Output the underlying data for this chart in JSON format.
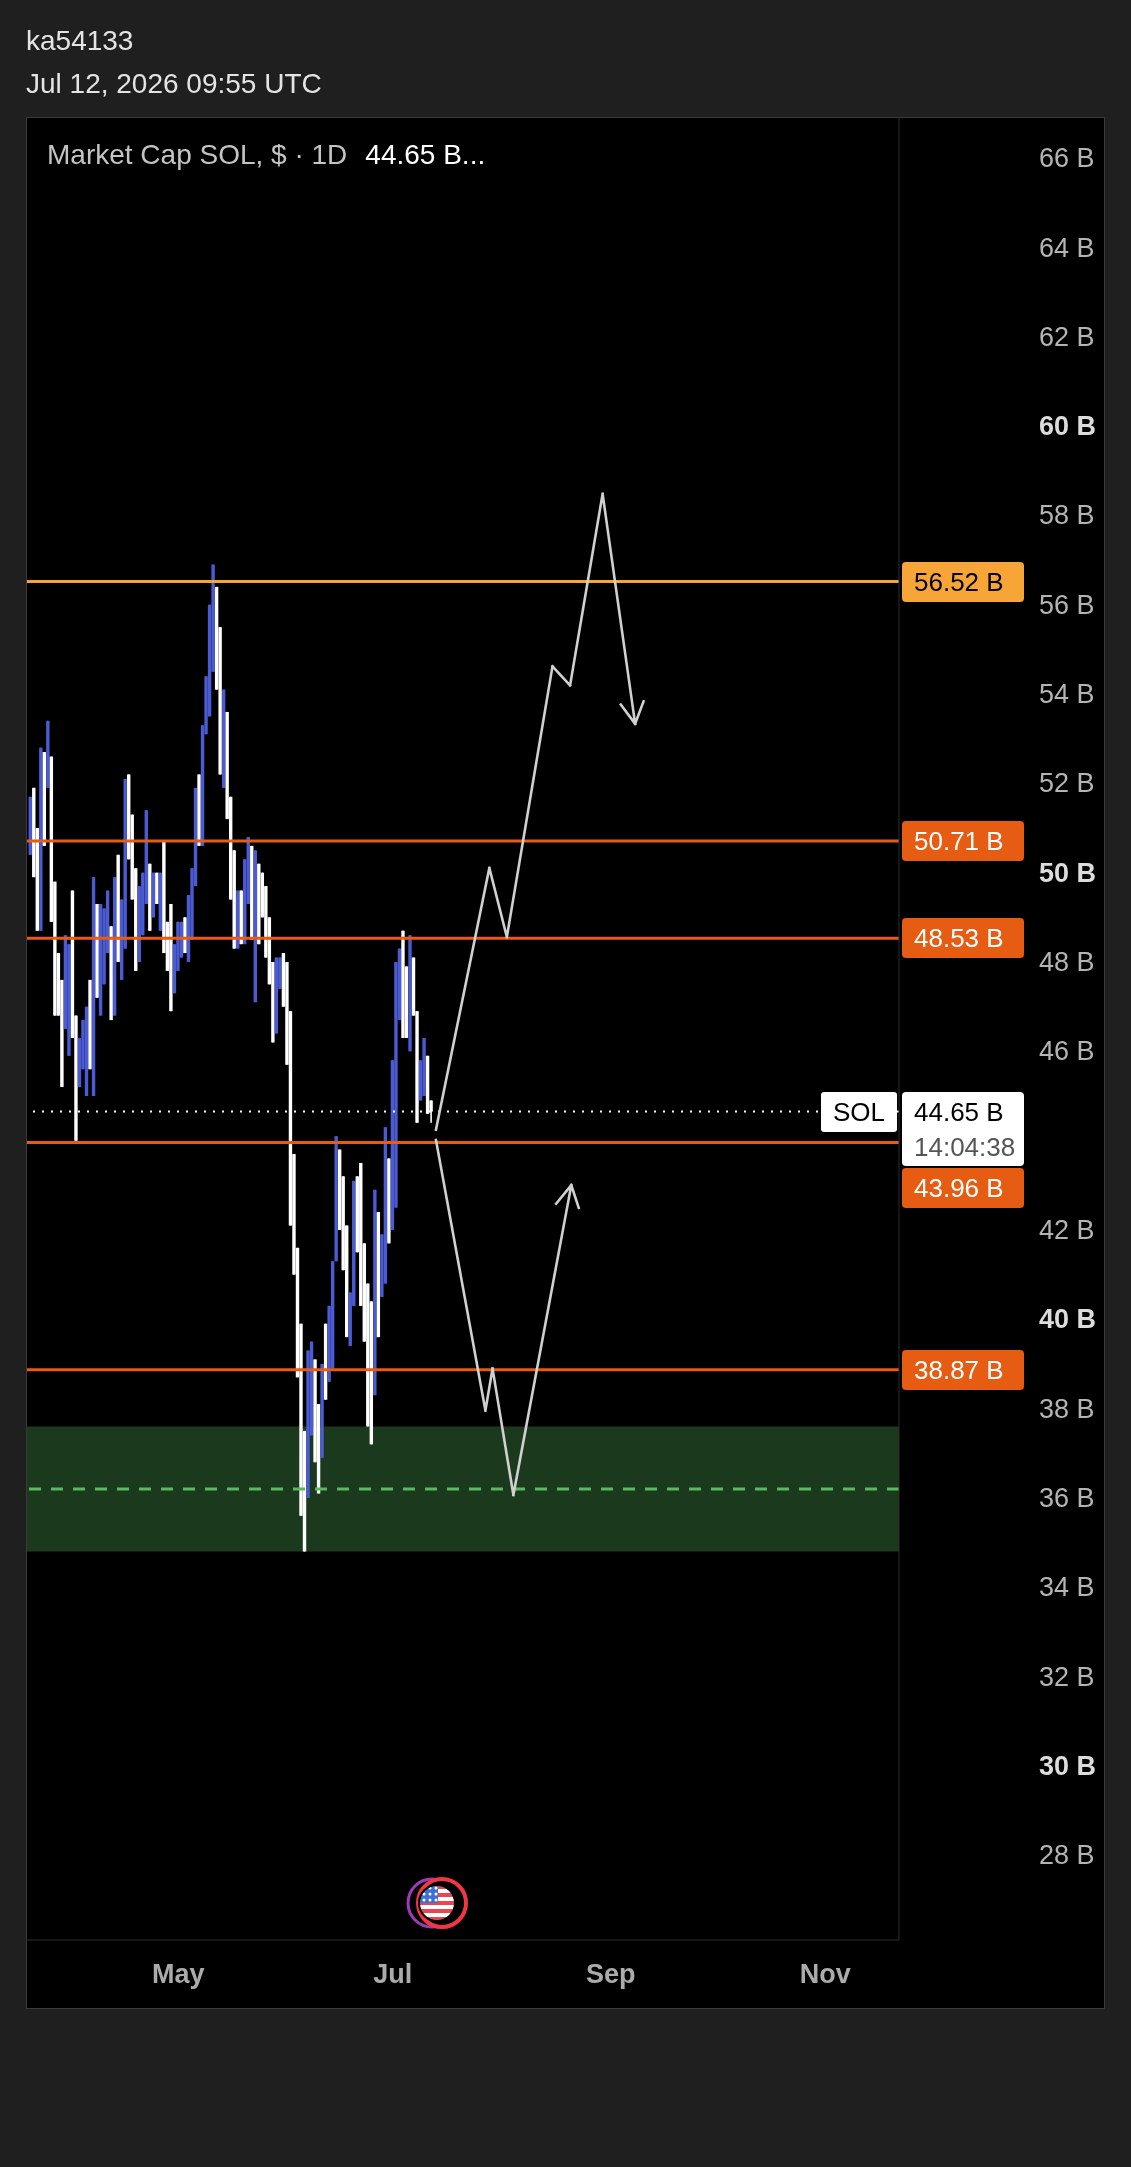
{
  "chart_data": {
    "type": "candlestick",
    "title": "Market Cap SOL, $ · 1D",
    "subtitle": "44.65 B...",
    "annotations": [
      "ka54133",
      "Jul 12, 2026 09:55 UTC",
      {
        "text": "SOL",
        "y": 44.65
      },
      "14:04:38"
    ],
    "x": [
      "2026-03-20",
      "2026-03-21",
      "2026-03-22",
      "2026-03-23",
      "2026-03-24",
      "2026-03-25",
      "2026-03-26",
      "2026-03-27",
      "2026-03-28",
      "2026-03-29",
      "2026-03-30",
      "2026-03-31",
      "2026-04-01",
      "2026-04-02",
      "2026-04-03",
      "2026-04-04",
      "2026-04-05",
      "2026-04-06",
      "2026-04-07",
      "2026-04-08",
      "2026-04-09",
      "2026-04-10",
      "2026-04-11",
      "2026-04-12",
      "2026-04-13",
      "2026-04-14",
      "2026-04-15",
      "2026-04-16",
      "2026-04-17",
      "2026-04-18",
      "2026-04-19",
      "2026-04-20",
      "2026-04-21",
      "2026-04-22",
      "2026-04-23",
      "2026-04-24",
      "2026-04-25",
      "2026-04-26",
      "2026-04-27",
      "2026-04-28",
      "2026-04-29",
      "2026-04-30",
      "2026-05-01",
      "2026-05-02",
      "2026-05-03",
      "2026-05-04",
      "2026-05-05",
      "2026-05-06",
      "2026-05-07",
      "2026-05-08",
      "2026-05-09",
      "2026-05-10",
      "2026-05-11",
      "2026-05-12",
      "2026-05-13",
      "2026-05-14",
      "2026-05-15",
      "2026-05-16",
      "2026-05-17",
      "2026-05-18",
      "2026-05-19",
      "2026-05-20",
      "2026-05-21",
      "2026-05-22",
      "2026-05-23",
      "2026-05-24",
      "2026-05-25",
      "2026-05-26",
      "2026-05-27",
      "2026-05-28",
      "2026-05-29",
      "2026-05-30",
      "2026-05-31",
      "2026-06-01",
      "2026-06-02",
      "2026-06-03",
      "2026-06-04",
      "2026-06-05",
      "2026-06-06",
      "2026-06-07",
      "2026-06-08",
      "2026-06-09",
      "2026-06-10",
      "2026-06-11",
      "2026-06-12",
      "2026-06-13",
      "2026-06-14",
      "2026-06-15",
      "2026-06-16",
      "2026-06-17",
      "2026-06-18",
      "2026-06-19",
      "2026-06-20",
      "2026-06-21",
      "2026-06-22",
      "2026-06-23",
      "2026-06-24",
      "2026-06-25",
      "2026-06-26",
      "2026-06-27",
      "2026-06-28",
      "2026-06-29",
      "2026-06-30",
      "2026-07-01",
      "2026-07-02",
      "2026-07-03",
      "2026-07-04",
      "2026-07-05",
      "2026-07-06",
      "2026-07-07",
      "2026-07-08",
      "2026-07-09",
      "2026-07-10",
      "2026-07-11",
      "2026-07-12"
    ],
    "ohlc": [
      [
        50.4,
        51.7,
        50.4,
        51.7
      ],
      [
        51.9,
        51.9,
        49.9,
        49.9
      ],
      [
        51.0,
        51.0,
        48.7,
        48.7
      ],
      [
        48.7,
        52.8,
        48.7,
        52.8
      ],
      [
        52.7,
        52.7,
        50.6,
        50.6
      ],
      [
        51.9,
        53.4,
        51.9,
        53.4
      ],
      [
        52.6,
        52.6,
        48.9,
        48.9
      ],
      [
        49.8,
        49.8,
        46.8,
        46.8
      ],
      [
        48.2,
        48.2,
        46.8,
        46.8
      ],
      [
        47.6,
        47.6,
        45.2,
        45.2
      ],
      [
        46.5,
        48.6,
        46.5,
        48.6
      ],
      [
        45.9,
        48.4,
        45.9,
        48.4
      ],
      [
        49.6,
        49.6,
        46.3,
        46.3
      ],
      [
        46.8,
        46.8,
        44.0,
        44.0
      ],
      [
        45.2,
        46.3,
        45.2,
        46.3
      ],
      [
        45.6,
        46.7,
        45.6,
        46.7
      ],
      [
        45.0,
        47.0,
        45.0,
        47.0
      ],
      [
        47.6,
        47.6,
        45.6,
        45.6
      ],
      [
        45.0,
        49.9,
        45.0,
        49.9
      ],
      [
        49.3,
        49.3,
        47.2,
        47.2
      ],
      [
        46.8,
        49.3,
        46.8,
        49.3
      ],
      [
        47.5,
        49.2,
        47.5,
        49.2
      ],
      [
        48.2,
        49.6,
        48.2,
        49.6
      ],
      [
        48.8,
        48.8,
        46.7,
        46.7
      ],
      [
        46.8,
        49.9,
        46.8,
        49.9
      ],
      [
        50.4,
        50.4,
        48.0,
        48.0
      ],
      [
        47.6,
        49.4,
        47.6,
        49.4
      ],
      [
        48.3,
        52.1,
        48.3,
        52.1
      ],
      [
        52.2,
        52.2,
        50.3,
        50.3
      ],
      [
        51.3,
        51.3,
        49.4,
        49.4
      ],
      [
        50.1,
        50.1,
        47.8,
        47.8
      ],
      [
        48.0,
        49.7,
        48.0,
        49.7
      ],
      [
        48.6,
        50.0,
        48.6,
        50.0
      ],
      [
        49.3,
        51.4,
        49.3,
        51.4
      ],
      [
        50.2,
        50.2,
        48.7,
        48.7
      ],
      [
        49.0,
        50.0,
        49.0,
        50.0
      ],
      [
        50.0,
        50.0,
        49.3,
        49.3
      ],
      [
        48.7,
        50.0,
        48.7,
        50.0
      ],
      [
        50.7,
        50.7,
        48.2,
        48.2
      ],
      [
        48.9,
        48.9,
        47.8,
        47.8
      ],
      [
        49.3,
        49.3,
        46.9,
        46.9
      ],
      [
        47.3,
        48.4,
        47.3,
        48.4
      ],
      [
        47.8,
        48.9,
        47.8,
        48.9
      ],
      [
        48.1,
        48.9,
        48.1,
        48.9
      ],
      [
        49.0,
        49.0,
        48.2,
        48.2
      ],
      [
        48.0,
        49.5,
        48.0,
        49.5
      ],
      [
        48.5,
        50.1,
        48.5,
        50.1
      ],
      [
        49.7,
        51.9,
        49.7,
        51.9
      ],
      [
        52.2,
        52.2,
        50.6,
        50.6
      ],
      [
        50.6,
        53.3,
        50.6,
        53.3
      ],
      [
        53.1,
        54.4,
        53.1,
        54.4
      ],
      [
        53.5,
        56.0,
        53.5,
        56.0
      ],
      [
        54.5,
        56.9,
        54.5,
        56.9
      ],
      [
        56.4,
        56.4,
        54.1,
        54.1
      ],
      [
        55.5,
        55.5,
        52.2,
        52.2
      ],
      [
        51.9,
        54.1,
        51.9,
        54.1
      ],
      [
        53.6,
        53.6,
        51.2,
        51.2
      ],
      [
        51.7,
        51.7,
        49.4,
        49.4
      ],
      [
        50.5,
        50.5,
        48.3,
        48.3
      ],
      [
        48.3,
        49.6,
        48.3,
        49.6
      ],
      [
        49.6,
        49.6,
        48.4,
        48.4
      ],
      [
        48.4,
        50.3,
        48.4,
        50.3
      ],
      [
        49.3,
        50.8,
        49.3,
        50.8
      ],
      [
        50.6,
        50.6,
        48.5,
        48.5
      ],
      [
        47.1,
        50.5,
        47.1,
        50.5
      ],
      [
        50.2,
        50.2,
        48.4,
        48.4
      ],
      [
        50.0,
        50.0,
        49.0,
        49.0
      ],
      [
        49.7,
        49.7,
        48.1,
        48.1
      ],
      [
        49.0,
        49.0,
        47.5,
        47.5
      ],
      [
        48.0,
        48.0,
        46.2,
        46.2
      ],
      [
        46.4,
        48.1,
        46.4,
        48.1
      ],
      [
        47.4,
        48.1,
        47.4,
        48.1
      ],
      [
        48.2,
        48.2,
        47.0,
        47.0
      ],
      [
        48.0,
        48.0,
        45.7,
        45.7
      ],
      [
        46.9,
        46.9,
        42.1,
        42.1
      ],
      [
        43.7,
        43.7,
        41.0,
        41.0
      ],
      [
        41.6,
        41.6,
        38.7,
        38.7
      ],
      [
        39.9,
        39.9,
        35.6,
        35.6
      ],
      [
        37.5,
        37.5,
        34.8,
        34.8
      ],
      [
        36.0,
        39.3,
        36.0,
        39.3
      ],
      [
        37.4,
        39.5,
        37.4,
        39.5
      ],
      [
        39.1,
        39.1,
        36.8,
        36.8
      ],
      [
        38.1,
        38.1,
        36.1,
        36.1
      ],
      [
        36.9,
        39.0,
        36.9,
        39.0
      ],
      [
        39.9,
        39.9,
        38.2,
        38.2
      ],
      [
        38.6,
        40.3,
        38.6,
        40.3
      ],
      [
        38.9,
        41.3,
        38.9,
        41.3
      ],
      [
        41.3,
        44.1,
        41.3,
        44.1
      ],
      [
        43.8,
        43.8,
        42.0,
        42.0
      ],
      [
        43.2,
        43.2,
        41.1,
        41.1
      ],
      [
        42.1,
        42.1,
        39.6,
        39.6
      ],
      [
        39.4,
        40.6,
        39.4,
        40.6
      ],
      [
        40.3,
        43.1,
        40.3,
        43.1
      ],
      [
        43.2,
        43.2,
        41.5,
        41.5
      ],
      [
        43.5,
        43.5,
        40.3,
        40.3
      ],
      [
        41.7,
        41.7,
        39.5,
        39.5
      ],
      [
        40.8,
        40.8,
        37.6,
        37.6
      ],
      [
        40.4,
        40.4,
        37.2,
        37.2
      ],
      [
        38.3,
        42.9,
        38.3,
        42.9
      ],
      [
        42.4,
        42.4,
        39.6,
        39.6
      ],
      [
        40.5,
        41.9,
        40.5,
        41.9
      ],
      [
        40.8,
        44.3,
        40.8,
        44.3
      ],
      [
        43.6,
        43.6,
        41.7,
        41.7
      ],
      [
        42.0,
        45.8,
        42.0,
        45.8
      ],
      [
        42.5,
        48.0,
        42.5,
        48.0
      ],
      [
        46.7,
        48.3,
        46.7,
        48.3
      ],
      [
        48.7,
        48.7,
        46.3,
        46.3
      ],
      [
        47.9,
        47.9,
        46.3,
        46.3
      ],
      [
        46.0,
        48.6,
        46.0,
        48.6
      ],
      [
        48.1,
        48.1,
        46.8,
        46.8
      ],
      [
        46.9,
        46.9,
        44.4,
        44.4
      ],
      [
        44.9,
        45.8,
        44.9,
        45.8
      ],
      [
        45.0,
        46.3,
        45.0,
        46.3
      ],
      [
        45.9,
        45.9,
        44.6,
        44.6
      ],
      [
        44.9,
        44.9,
        44.4,
        44.65
      ]
    ],
    "colors": [
      "#4b5bd4",
      "#ffffff",
      "#ffffff",
      "#4b5bd4",
      "#ffffff",
      "#4b5bd4",
      "#ffffff",
      "#ffffff",
      "#ffffff",
      "#ffffff",
      "#4b5bd4",
      "#4b5bd4",
      "#ffffff",
      "#ffffff",
      "#4b5bd4",
      "#4b5bd4",
      "#4b5bd4",
      "#ffffff",
      "#4b5bd4",
      "#ffffff",
      "#4b5bd4",
      "#4b5bd4",
      "#4b5bd4",
      "#ffffff",
      "#4b5bd4",
      "#ffffff",
      "#4b5bd4",
      "#4b5bd4",
      "#ffffff",
      "#ffffff",
      "#ffffff",
      "#4b5bd4",
      "#4b5bd4",
      "#4b5bd4",
      "#ffffff",
      "#4b5bd4",
      "#ffffff",
      "#4b5bd4",
      "#ffffff",
      "#ffffff",
      "#ffffff",
      "#4b5bd4",
      "#4b5bd4",
      "#4b5bd4",
      "#ffffff",
      "#4b5bd4",
      "#4b5bd4",
      "#4b5bd4",
      "#ffffff",
      "#4b5bd4",
      "#4b5bd4",
      "#4b5bd4",
      "#4b5bd4",
      "#ffffff",
      "#ffffff",
      "#4b5bd4",
      "#ffffff",
      "#ffffff",
      "#ffffff",
      "#4b5bd4",
      "#ffffff",
      "#4b5bd4",
      "#4b5bd4",
      "#ffffff",
      "#4b5bd4",
      "#ffffff",
      "#ffffff",
      "#ffffff",
      "#ffffff",
      "#ffffff",
      "#4b5bd4",
      "#4b5bd4",
      "#ffffff",
      "#ffffff",
      "#ffffff",
      "#ffffff",
      "#ffffff",
      "#ffffff",
      "#ffffff",
      "#4b5bd4",
      "#4b5bd4",
      "#ffffff",
      "#ffffff",
      "#4b5bd4",
      "#ffffff",
      "#4b5bd4",
      "#4b5bd4",
      "#4b5bd4",
      "#ffffff",
      "#ffffff",
      "#ffffff",
      "#4b5bd4",
      "#4b5bd4",
      "#ffffff",
      "#ffffff",
      "#ffffff",
      "#ffffff",
      "#ffffff",
      "#4b5bd4",
      "#ffffff",
      "#4b5bd4",
      "#4b5bd4",
      "#ffffff",
      "#4b5bd4",
      "#4b5bd4",
      "#4b5bd4",
      "#ffffff",
      "#ffffff",
      "#4b5bd4",
      "#ffffff",
      "#ffffff",
      "#4b5bd4",
      "#4b5bd4",
      "#ffffff",
      "#ffffff"
    ],
    "xlim": [
      "2026-03-19",
      "2026-11-22"
    ],
    "xticks": [
      {
        "value": "2026-05-01",
        "label": "May"
      },
      {
        "value": "2026-07-01",
        "label": "Jul"
      },
      {
        "value": "2026-09-01",
        "label": "Sep"
      },
      {
        "value": "2026-11-01",
        "label": "Nov"
      }
    ],
    "ylim": [
      26.1,
      66.9
    ],
    "yticks": [
      {
        "value": 28,
        "label": "28 B"
      },
      {
        "value": 30,
        "label": "30 B"
      },
      {
        "value": 32,
        "label": "32 B"
      },
      {
        "value": 34,
        "label": "34 B"
      },
      {
        "value": 36,
        "label": "36 B"
      },
      {
        "value": 38,
        "label": "38 B"
      },
      {
        "value": 40,
        "label": "40 B"
      },
      {
        "value": 42,
        "label": "42 B"
      },
      {
        "value": 46,
        "label": "46 B"
      },
      {
        "value": 48,
        "label": "48 B"
      },
      {
        "value": 50,
        "label": "50 B"
      },
      {
        "value": 52,
        "label": "52 B"
      },
      {
        "value": 54,
        "label": "54 B"
      },
      {
        "value": 56,
        "label": "56 B"
      },
      {
        "value": 58,
        "label": "58 B"
      },
      {
        "value": 60,
        "label": "60 B"
      },
      {
        "value": 62,
        "label": "62 B"
      },
      {
        "value": 64,
        "label": "64 B"
      },
      {
        "value": 66,
        "label": "66 B"
      }
    ],
    "ref_lines": [
      {
        "axis": "y",
        "value": 56.52,
        "label": "56.52 B",
        "color": "#f6a536"
      },
      {
        "axis": "y",
        "value": 50.71,
        "label": "50.71 B",
        "color": "#e65c12"
      },
      {
        "axis": "y",
        "value": 48.53,
        "label": "48.53 B",
        "color": "#e65c12"
      },
      {
        "axis": "y",
        "value": 43.96,
        "label": "43.96 B",
        "color": "#e65c12"
      },
      {
        "axis": "y",
        "value": 38.87,
        "label": "38.87 B",
        "color": "#e65c12"
      },
      {
        "axis": "y",
        "value": 44.65,
        "label": "44.65 B",
        "color": "#ffffff",
        "line_style": "dotted"
      },
      {
        "axis": "y",
        "value": 36.2,
        "color": "#5cb860",
        "line_style": "dashed"
      }
    ],
    "bands": [
      {
        "axis": "y",
        "from": 34.8,
        "to": 37.6,
        "color": "#1b3a1d"
      }
    ]
  }
}
